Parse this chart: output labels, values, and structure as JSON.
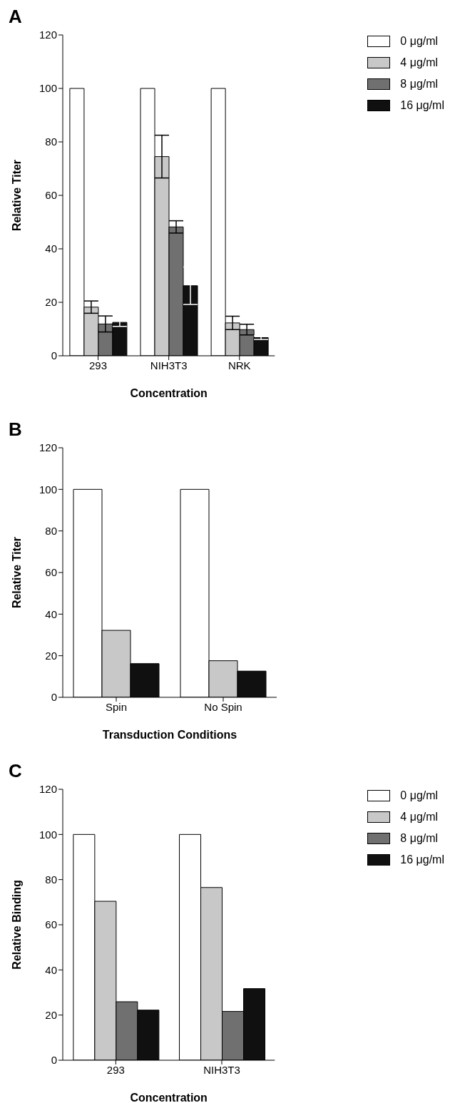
{
  "chart_data": [
    {
      "type": "bar",
      "title": "A",
      "xlabel": "Concentration",
      "ylabel": "Relative Titer",
      "categories": [
        "293",
        "NIH3T3",
        "NRK"
      ],
      "ylim": [
        0,
        120
      ],
      "yticks": [
        0,
        20,
        40,
        60,
        80,
        100,
        120
      ],
      "legend": "top right",
      "series": [
        {
          "name": "0 μg/ml",
          "color": "#ffffff",
          "values": [
            100,
            100,
            100
          ]
        },
        {
          "name": "4 μg/ml",
          "color": "#c8c8c8",
          "values": [
            18.2,
            74.5,
            12.3
          ],
          "errors": [
            2.3,
            8,
            2.5
          ]
        },
        {
          "name": "8 μg/ml",
          "color": "#707070",
          "values": [
            11.9,
            48.2,
            9.8
          ],
          "errors": [
            3,
            2.3,
            2
          ]
        },
        {
          "name": "16 μg/ml",
          "color": "#101010",
          "values": [
            12.5,
            26.2,
            6.8
          ],
          "errors": [
            1.5,
            7,
            0.7
          ]
        }
      ]
    },
    {
      "type": "bar",
      "title": "B",
      "xlabel": "Transduction Conditions",
      "ylabel": "Relative Titer",
      "categories": [
        "Spin",
        "No Spin"
      ],
      "ylim": [
        0,
        120
      ],
      "yticks": [
        0,
        20,
        40,
        60,
        80,
        100,
        120
      ],
      "series": [
        {
          "color": "#ffffff",
          "values": [
            100,
            100
          ]
        },
        {
          "color": "#c8c8c8",
          "values": [
            32.2,
            17.6
          ]
        },
        {
          "color": "#101010",
          "values": [
            16.2,
            12.6
          ]
        }
      ]
    },
    {
      "type": "bar",
      "title": "C",
      "xlabel": "Concentration",
      "ylabel": "Relative Binding",
      "categories": [
        "293",
        "NIH3T3"
      ],
      "ylim": [
        0,
        120
      ],
      "yticks": [
        0,
        20,
        40,
        60,
        80,
        100,
        120
      ],
      "legend": "top right",
      "series": [
        {
          "name": "0 μg/ml",
          "color": "#ffffff",
          "values": [
            100,
            100
          ]
        },
        {
          "name": "4 μg/ml",
          "color": "#c8c8c8",
          "values": [
            70.4,
            76.5
          ]
        },
        {
          "name": "8 μg/ml",
          "color": "#707070",
          "values": [
            25.9,
            21.6
          ]
        },
        {
          "name": "16 μg/ml",
          "color": "#101010",
          "values": [
            22.2,
            31.7
          ]
        }
      ]
    }
  ]
}
